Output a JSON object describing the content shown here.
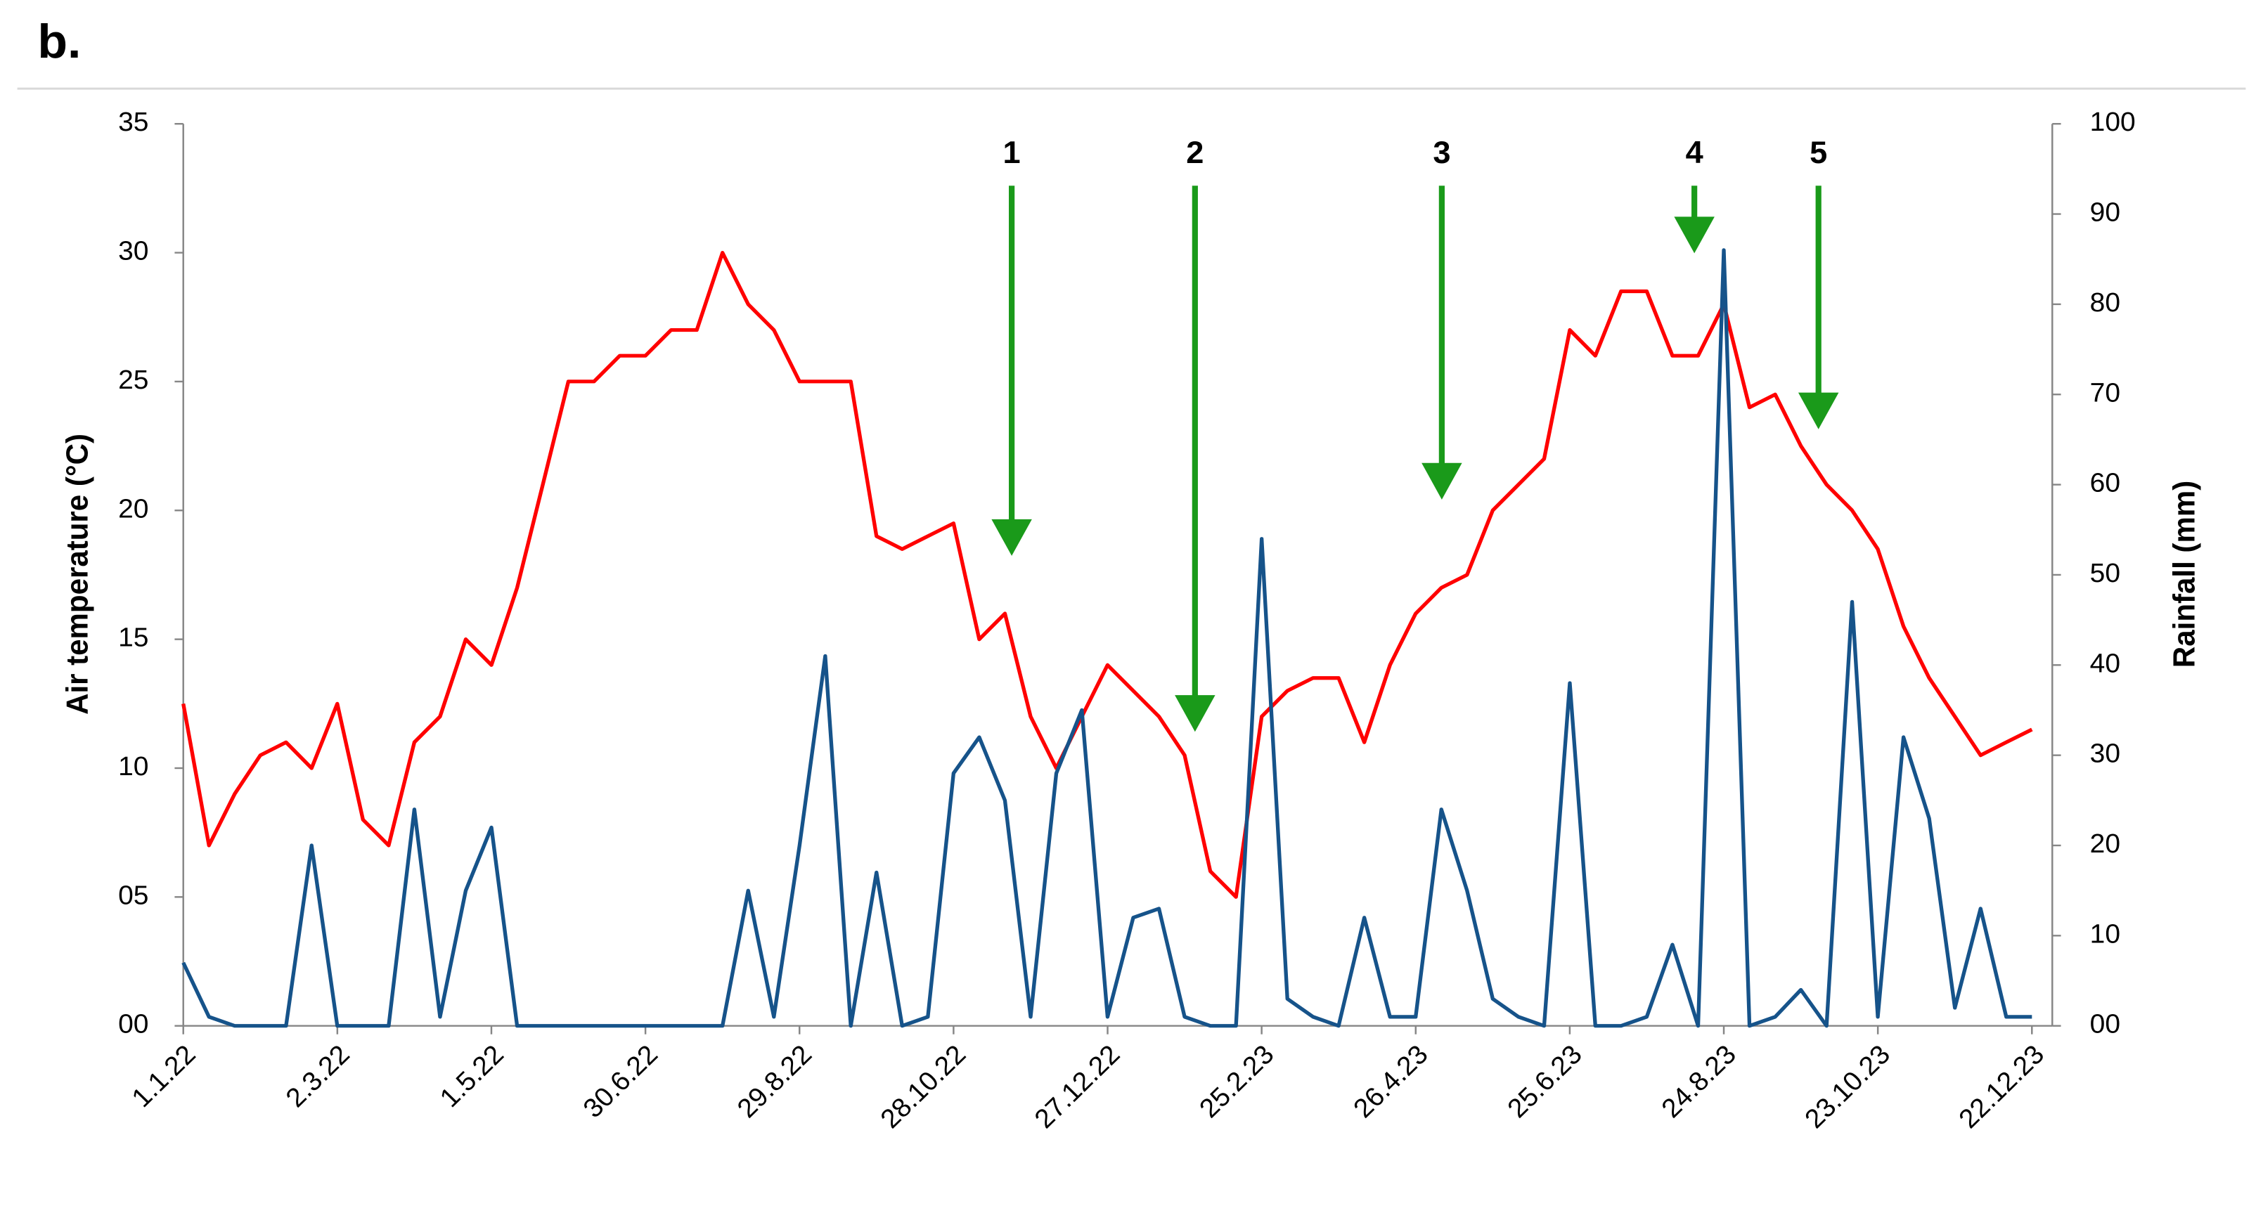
{
  "panel_label": "b.",
  "chart_data": {
    "type": "line",
    "ylabel": "Air temperature (°C)",
    "y2label": "Rainfall (mm)",
    "categories": [
      "1.1.22",
      null,
      null,
      null,
      null,
      null,
      "2.3.22",
      null,
      null,
      null,
      null,
      null,
      "1.5.22",
      null,
      null,
      null,
      null,
      null,
      "30.6.22",
      null,
      null,
      null,
      null,
      null,
      "29.8.22",
      null,
      null,
      null,
      null,
      null,
      "28.10.22",
      null,
      null,
      null,
      null,
      null,
      "27.12.22",
      null,
      null,
      null,
      null,
      null,
      "25.2.23",
      null,
      null,
      null,
      null,
      null,
      "26.4.23",
      null,
      null,
      null,
      null,
      null,
      "25.6.23",
      null,
      null,
      null,
      null,
      null,
      "24.8.23",
      null,
      null,
      null,
      null,
      null,
      "23.10.23",
      null,
      null,
      null,
      null,
      null,
      "22.12.23"
    ],
    "series": [
      {
        "color": "#ff0000",
        "axis": "y",
        "values": [
          12.5,
          7,
          9,
          10.5,
          11,
          10,
          12.5,
          8,
          7,
          11,
          12,
          15,
          14,
          17,
          21,
          25,
          25,
          26,
          26,
          27,
          27,
          30,
          28,
          27,
          25,
          25,
          25,
          19,
          18.5,
          19,
          19.5,
          15,
          16,
          12,
          10,
          12,
          14,
          13,
          12,
          10.5,
          6,
          5,
          12,
          13,
          13.5,
          13.5,
          11,
          14,
          16,
          17,
          17.5,
          20,
          21,
          22,
          27,
          26,
          28.5,
          28.5,
          26,
          26,
          28,
          24,
          24.5,
          22.5,
          21,
          20,
          18.5,
          15.5,
          13.5,
          12,
          10.5,
          11,
          11.5
        ]
      },
      {
        "color": "#16538a",
        "axis": "y2",
        "values": [
          7,
          1,
          0,
          0,
          0,
          20,
          0,
          0,
          0,
          24,
          1,
          15,
          22,
          0,
          0,
          0,
          0,
          0,
          0,
          0,
          0,
          0,
          15,
          1,
          20,
          41,
          0,
          17,
          0,
          1,
          28,
          32,
          25,
          1,
          28,
          35,
          1,
          12,
          13,
          1,
          0,
          0,
          54,
          3,
          1,
          0,
          12,
          1,
          1,
          24,
          15,
          3,
          1,
          0,
          38,
          0,
          0,
          1,
          9,
          0,
          86,
          0,
          1,
          4,
          0,
          47,
          1,
          32,
          23,
          2,
          13,
          1,
          1
        ]
      }
    ],
    "ylim": [
      0,
      35
    ],
    "yticks": [
      {
        "value": 0,
        "label": "00"
      },
      {
        "value": 5,
        "label": "05"
      },
      10,
      15,
      20,
      25,
      30,
      35
    ],
    "y2lim": [
      0,
      100
    ],
    "y2ticks": [
      {
        "value": 0,
        "label": "00"
      },
      10,
      20,
      30,
      40,
      50,
      60,
      70,
      80,
      90,
      100
    ],
    "annotations": [
      "1",
      "2",
      "3",
      "4",
      "5"
    ]
  }
}
